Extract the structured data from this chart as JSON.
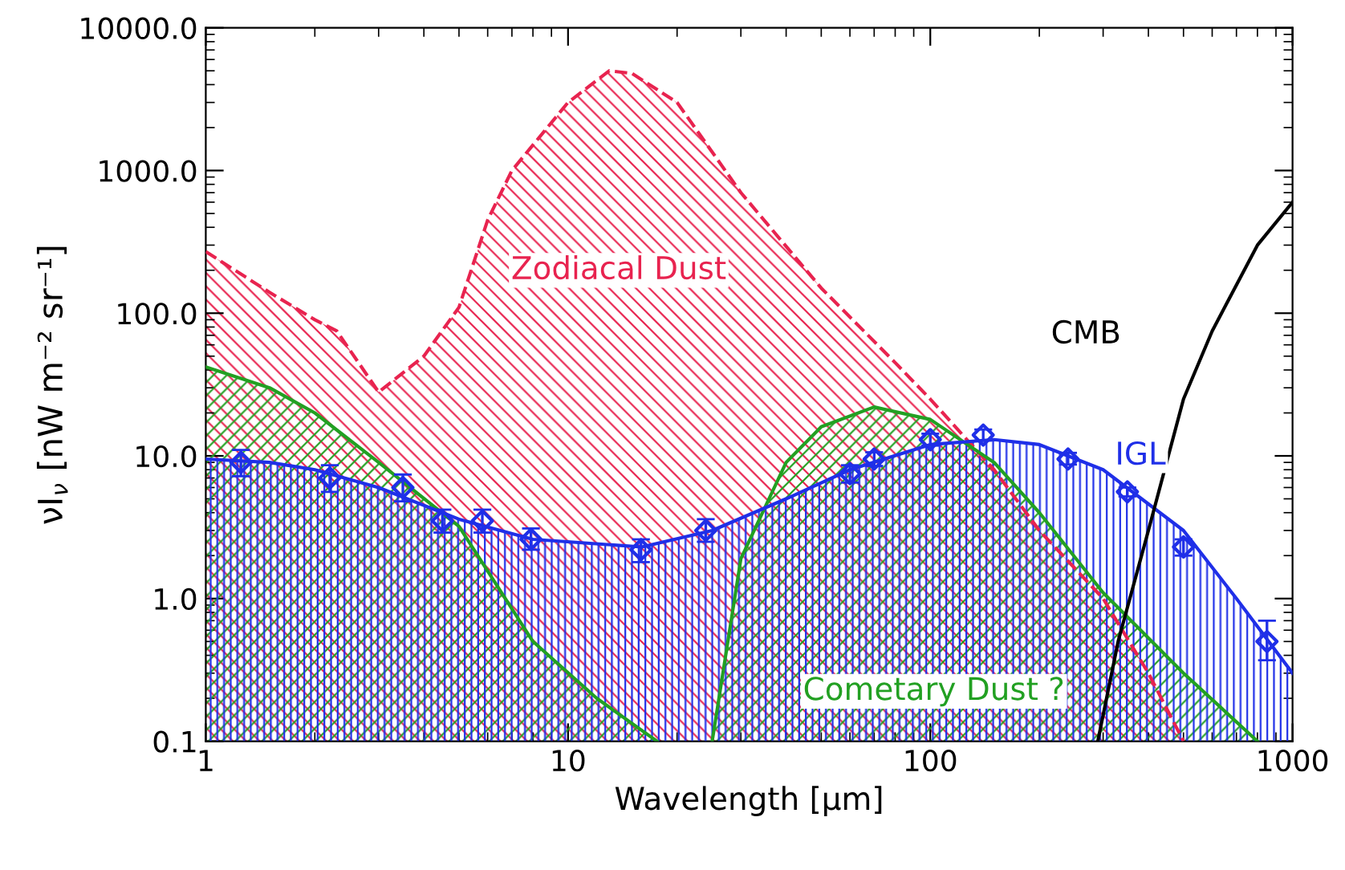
{
  "chart_data": {
    "type": "area",
    "xlabel": "Wavelength [μm]",
    "ylabel": "νI$_{ν}$ [nW m⁻² sr⁻¹]",
    "log": "xy",
    "xlim": [
      1,
      1000
    ],
    "ylim": [
      0.1,
      10000
    ],
    "xticks": [
      1,
      10,
      100,
      1000
    ],
    "yticks": [
      {
        "value": 0.1,
        "label": "0.1"
      },
      {
        "value": 1,
        "label": "1.0"
      },
      {
        "value": 10,
        "label": "10.0"
      },
      {
        "value": 100,
        "label": "100.0"
      },
      {
        "value": 1000,
        "label": "1000.0"
      },
      {
        "value": 10000,
        "label": "10000.0"
      }
    ],
    "grid": false,
    "series": [
      {
        "name": "Zodiacal Dust",
        "color": "#e8234f",
        "line_style": "dashed",
        "x": [
          1,
          1.5,
          2,
          2.3,
          3,
          4,
          5,
          6,
          7,
          10,
          13,
          15,
          20,
          30,
          50,
          80,
          100,
          150,
          200,
          300,
          400,
          500
        ],
        "values": [
          270,
          140,
          90,
          75,
          28,
          50,
          110,
          450,
          1000,
          3000,
          5000,
          4800,
          3000,
          700,
          150,
          45,
          25,
          8,
          3,
          1,
          0.3,
          0.1
        ]
      },
      {
        "name": "Cometary Dust ?",
        "color": "#22a022",
        "line_style": "solid",
        "x": [
          1,
          1.5,
          2,
          3,
          5,
          8,
          12,
          17.6,
          20,
          25,
          30,
          40,
          50,
          70,
          100,
          150,
          200,
          300,
          500,
          800
        ],
        "values": [
          42,
          30,
          20,
          9,
          3.2,
          0.5,
          0.2,
          0.1,
          null,
          0.1,
          1.9,
          9,
          16,
          22,
          18,
          9,
          4,
          1.1,
          0.3,
          0.1
        ]
      },
      {
        "name": "IGL",
        "color": "#1f2fe8",
        "line_style": "solid",
        "x": [
          1,
          1.5,
          2,
          3,
          5,
          8,
          16,
          25,
          40,
          60,
          100,
          150,
          200,
          300,
          500,
          700,
          1000
        ],
        "values": [
          9.5,
          9,
          8,
          6,
          3.6,
          2.6,
          2.3,
          3,
          5,
          8,
          12,
          13,
          12,
          8,
          3,
          1,
          0.3
        ]
      },
      {
        "type": "scatter",
        "color": "#1f2fe8",
        "marker": "diamond",
        "x": [
          1.25,
          2.2,
          3.5,
          4.5,
          5.8,
          7.9,
          15.9,
          24,
          60,
          70,
          100,
          140,
          240,
          350,
          500,
          850
        ],
        "values": [
          9,
          7,
          6,
          3.5,
          3.5,
          2.6,
          2.2,
          3.0,
          7.5,
          9.5,
          13,
          14,
          9.5,
          5.6,
          2.3,
          0.5
        ],
        "errors": [
          [
            7.2,
            11
          ],
          [
            5.6,
            8.6
          ],
          [
            4.8,
            7.4
          ],
          [
            2.9,
            4.2
          ],
          [
            2.9,
            4.2
          ],
          [
            2.2,
            3.1
          ],
          [
            1.8,
            2.6
          ],
          [
            2.5,
            3.6
          ],
          [
            6.5,
            8.6
          ],
          [
            8.5,
            10.6
          ],
          [
            11.8,
            14.3
          ],
          [
            12.8,
            15.3
          ],
          [
            8.7,
            10.5
          ],
          [
            5.2,
            6.0
          ],
          [
            2.0,
            2.6
          ],
          [
            0.37,
            0.7
          ]
        ]
      },
      {
        "name": "CMB",
        "type": "line",
        "color": "#000000",
        "line_style": "solid",
        "x": [
          290,
          330,
          400,
          500,
          600,
          800,
          1000
        ],
        "values": [
          0.1,
          0.5,
          3,
          25,
          75,
          300,
          600
        ]
      }
    ]
  }
}
